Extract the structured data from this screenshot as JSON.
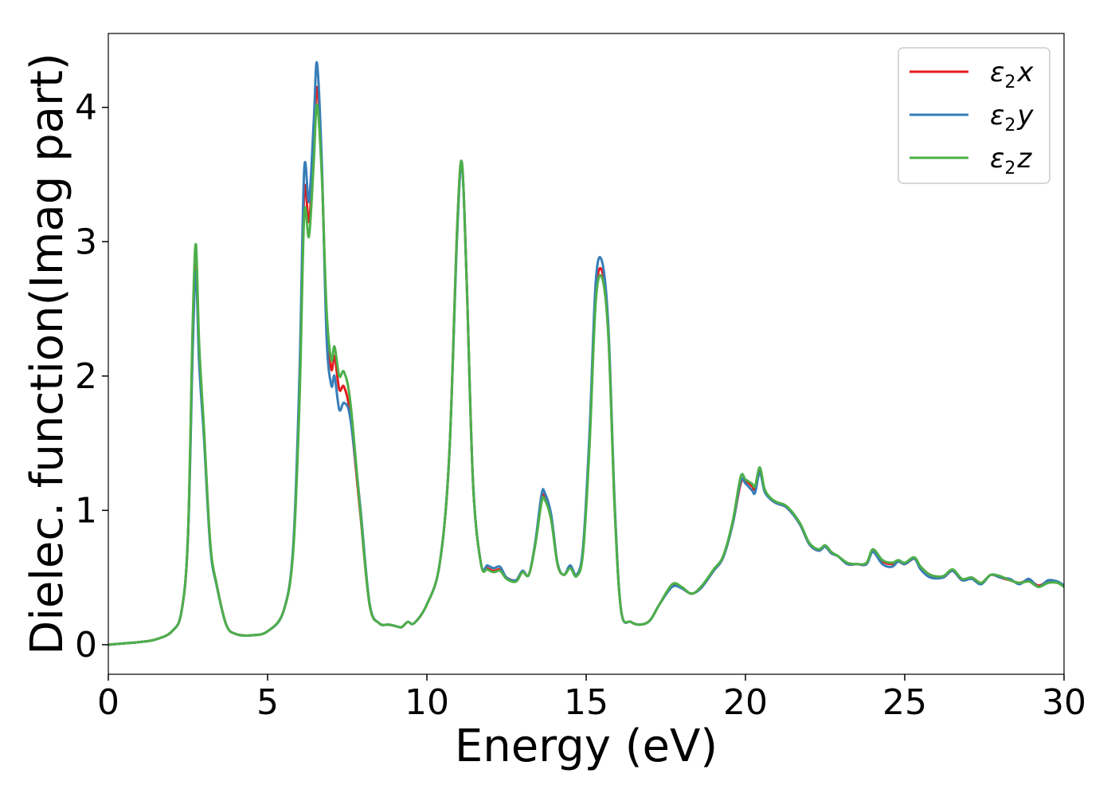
{
  "chart_data": {
    "type": "line",
    "xlabel": "Energy (eV)",
    "ylabel": "Dielec. function(Imag part)",
    "xlim": [
      0,
      30
    ],
    "ylim": [
      -0.22,
      4.55
    ],
    "xticks": [
      0,
      5,
      10,
      15,
      20,
      25,
      30
    ],
    "yticks": [
      0,
      1,
      2,
      3,
      4
    ],
    "grid": false,
    "legend_position": "top-right",
    "series": [
      {
        "name": "ε2x",
        "legend_main": "ε",
        "legend_sub": "2",
        "legend_var": "x",
        "color": "#e41a1c",
        "x": [
          0,
          0.5,
          1.0,
          1.5,
          2.0,
          2.3,
          2.5,
          2.65,
          2.75,
          2.85,
          3.0,
          3.2,
          3.4,
          3.7,
          4.0,
          4.5,
          5.0,
          5.5,
          5.8,
          6.0,
          6.15,
          6.3,
          6.45,
          6.55,
          6.7,
          6.85,
          7.0,
          7.1,
          7.25,
          7.4,
          7.6,
          7.9,
          8.2,
          8.5,
          8.8,
          9.0,
          9.2,
          9.4,
          9.6,
          10.0,
          10.4,
          10.7,
          10.95,
          11.1,
          11.25,
          11.45,
          11.7,
          11.9,
          12.1,
          12.3,
          12.5,
          12.8,
          13.0,
          13.2,
          13.4,
          13.6,
          13.7,
          13.9,
          14.1,
          14.3,
          14.5,
          14.7,
          14.9,
          15.1,
          15.3,
          15.5,
          15.7,
          15.9,
          16.1,
          16.4,
          16.7,
          17.0,
          17.3,
          17.7,
          18.0,
          18.3,
          18.6,
          19.0,
          19.3,
          19.6,
          19.85,
          20.0,
          20.2,
          20.3,
          20.45,
          20.6,
          20.8,
          21.0,
          21.3,
          21.7,
          22.0,
          22.3,
          22.5,
          22.7,
          22.9,
          23.2,
          23.5,
          23.8,
          24.0,
          24.3,
          24.6,
          24.8,
          25.0,
          25.3,
          25.5,
          25.8,
          26.2,
          26.5,
          26.8,
          27.1,
          27.4,
          27.7,
          28.0,
          28.3,
          28.6,
          28.9,
          29.2,
          29.5,
          29.8,
          30.0
        ],
        "y": [
          0.0,
          0.01,
          0.02,
          0.04,
          0.1,
          0.25,
          0.8,
          2.3,
          2.9,
          2.2,
          1.6,
          0.75,
          0.45,
          0.15,
          0.08,
          0.07,
          0.1,
          0.25,
          0.7,
          1.9,
          3.37,
          3.15,
          3.7,
          4.15,
          3.55,
          2.4,
          2.05,
          2.15,
          1.9,
          1.92,
          1.7,
          1.0,
          0.3,
          0.16,
          0.15,
          0.14,
          0.13,
          0.17,
          0.16,
          0.3,
          0.6,
          1.4,
          3.1,
          3.58,
          2.7,
          1.2,
          0.6,
          0.57,
          0.55,
          0.56,
          0.5,
          0.48,
          0.55,
          0.52,
          0.75,
          1.08,
          1.1,
          0.95,
          0.6,
          0.52,
          0.58,
          0.52,
          0.7,
          1.5,
          2.6,
          2.78,
          2.3,
          1.0,
          0.25,
          0.17,
          0.15,
          0.18,
          0.3,
          0.44,
          0.42,
          0.38,
          0.42,
          0.55,
          0.65,
          0.9,
          1.2,
          1.22,
          1.18,
          1.16,
          1.3,
          1.15,
          1.08,
          1.05,
          1.02,
          0.9,
          0.75,
          0.7,
          0.73,
          0.68,
          0.66,
          0.6,
          0.6,
          0.6,
          0.7,
          0.62,
          0.6,
          0.62,
          0.6,
          0.64,
          0.58,
          0.52,
          0.5,
          0.55,
          0.48,
          0.5,
          0.46,
          0.52,
          0.5,
          0.48,
          0.46,
          0.48,
          0.44,
          0.47,
          0.46,
          0.44
        ]
      },
      {
        "name": "ε2y",
        "legend_main": "ε",
        "legend_sub": "2",
        "legend_var": "y",
        "color": "#377eb8",
        "x": [
          0,
          0.5,
          1.0,
          1.5,
          2.0,
          2.3,
          2.5,
          2.65,
          2.75,
          2.85,
          3.0,
          3.2,
          3.4,
          3.7,
          4.0,
          4.5,
          5.0,
          5.5,
          5.8,
          6.0,
          6.15,
          6.3,
          6.45,
          6.55,
          6.7,
          6.85,
          7.0,
          7.1,
          7.25,
          7.4,
          7.6,
          7.9,
          8.2,
          8.5,
          8.8,
          9.0,
          9.2,
          9.4,
          9.6,
          10.0,
          10.4,
          10.7,
          10.95,
          11.1,
          11.25,
          11.45,
          11.7,
          11.9,
          12.1,
          12.3,
          12.5,
          12.8,
          13.0,
          13.2,
          13.4,
          13.6,
          13.7,
          13.9,
          14.1,
          14.3,
          14.5,
          14.7,
          14.9,
          15.1,
          15.3,
          15.5,
          15.7,
          15.9,
          16.1,
          16.4,
          16.7,
          17.0,
          17.3,
          17.7,
          18.0,
          18.3,
          18.6,
          19.0,
          19.3,
          19.6,
          19.85,
          20.0,
          20.2,
          20.3,
          20.45,
          20.6,
          20.8,
          21.0,
          21.3,
          21.7,
          22.0,
          22.3,
          22.5,
          22.7,
          22.9,
          23.2,
          23.5,
          23.8,
          24.0,
          24.3,
          24.6,
          24.8,
          25.0,
          25.3,
          25.5,
          25.8,
          26.2,
          26.5,
          26.8,
          27.1,
          27.4,
          27.7,
          28.0,
          28.3,
          28.6,
          28.9,
          29.2,
          29.5,
          29.8,
          30.0
        ],
        "y": [
          0.0,
          0.01,
          0.02,
          0.04,
          0.1,
          0.25,
          0.8,
          2.2,
          2.78,
          2.1,
          1.55,
          0.73,
          0.44,
          0.15,
          0.08,
          0.07,
          0.1,
          0.25,
          0.72,
          2.0,
          3.54,
          3.3,
          3.9,
          4.33,
          3.6,
          2.3,
          1.93,
          2.0,
          1.75,
          1.8,
          1.68,
          1.05,
          0.31,
          0.16,
          0.15,
          0.14,
          0.13,
          0.17,
          0.16,
          0.3,
          0.6,
          1.4,
          3.05,
          3.57,
          2.7,
          1.2,
          0.6,
          0.59,
          0.57,
          0.58,
          0.5,
          0.48,
          0.55,
          0.52,
          0.76,
          1.12,
          1.13,
          0.97,
          0.61,
          0.52,
          0.59,
          0.52,
          0.72,
          1.55,
          2.7,
          2.85,
          2.35,
          1.02,
          0.25,
          0.17,
          0.15,
          0.18,
          0.3,
          0.43,
          0.42,
          0.38,
          0.42,
          0.55,
          0.65,
          0.9,
          1.22,
          1.2,
          1.15,
          1.13,
          1.28,
          1.14,
          1.08,
          1.05,
          1.02,
          0.9,
          0.75,
          0.7,
          0.73,
          0.68,
          0.66,
          0.6,
          0.6,
          0.6,
          0.69,
          0.6,
          0.58,
          0.62,
          0.6,
          0.64,
          0.56,
          0.5,
          0.5,
          0.55,
          0.48,
          0.49,
          0.45,
          0.52,
          0.5,
          0.49,
          0.45,
          0.49,
          0.43,
          0.48,
          0.47,
          0.44
        ]
      },
      {
        "name": "ε2z",
        "legend_main": "ε",
        "legend_sub": "2",
        "legend_var": "z",
        "color": "#4daf4a",
        "x": [
          0,
          0.5,
          1.0,
          1.5,
          2.0,
          2.3,
          2.5,
          2.65,
          2.75,
          2.85,
          3.0,
          3.2,
          3.4,
          3.7,
          4.0,
          4.5,
          5.0,
          5.5,
          5.8,
          6.0,
          6.15,
          6.3,
          6.45,
          6.55,
          6.7,
          6.85,
          7.0,
          7.1,
          7.25,
          7.4,
          7.6,
          7.9,
          8.2,
          8.5,
          8.8,
          9.0,
          9.2,
          9.4,
          9.6,
          10.0,
          10.4,
          10.7,
          10.95,
          11.1,
          11.25,
          11.45,
          11.7,
          11.9,
          12.1,
          12.3,
          12.5,
          12.8,
          13.0,
          13.2,
          13.4,
          13.6,
          13.7,
          13.9,
          14.1,
          14.3,
          14.5,
          14.7,
          14.9,
          15.1,
          15.3,
          15.5,
          15.7,
          15.9,
          16.1,
          16.4,
          16.7,
          17.0,
          17.3,
          17.7,
          18.0,
          18.3,
          18.6,
          19.0,
          19.3,
          19.6,
          19.85,
          20.0,
          20.2,
          20.3,
          20.45,
          20.6,
          20.8,
          21.0,
          21.3,
          21.7,
          22.0,
          22.3,
          22.5,
          22.7,
          22.9,
          23.2,
          23.5,
          23.8,
          24.0,
          24.3,
          24.6,
          24.8,
          25.0,
          25.3,
          25.5,
          25.8,
          26.2,
          26.5,
          26.8,
          27.1,
          27.4,
          27.7,
          28.0,
          28.3,
          28.6,
          28.9,
          29.2,
          29.5,
          29.8,
          30.0
        ],
        "y": [
          0.0,
          0.01,
          0.02,
          0.04,
          0.1,
          0.25,
          0.82,
          2.4,
          2.98,
          2.25,
          1.62,
          0.76,
          0.45,
          0.15,
          0.08,
          0.07,
          0.1,
          0.25,
          0.68,
          1.8,
          3.2,
          3.04,
          3.6,
          4.02,
          3.5,
          2.5,
          2.12,
          2.22,
          2.0,
          2.03,
          1.8,
          1.02,
          0.3,
          0.16,
          0.15,
          0.14,
          0.13,
          0.17,
          0.16,
          0.3,
          0.6,
          1.4,
          3.1,
          3.59,
          2.7,
          1.2,
          0.6,
          0.56,
          0.54,
          0.55,
          0.49,
          0.47,
          0.54,
          0.52,
          0.74,
          1.06,
          1.08,
          0.93,
          0.6,
          0.52,
          0.57,
          0.51,
          0.68,
          1.45,
          2.55,
          2.73,
          2.28,
          0.98,
          0.25,
          0.17,
          0.15,
          0.18,
          0.3,
          0.45,
          0.43,
          0.38,
          0.43,
          0.56,
          0.66,
          0.92,
          1.25,
          1.23,
          1.2,
          1.18,
          1.32,
          1.16,
          1.09,
          1.06,
          1.03,
          0.91,
          0.76,
          0.71,
          0.74,
          0.69,
          0.66,
          0.61,
          0.6,
          0.61,
          0.71,
          0.63,
          0.61,
          0.63,
          0.61,
          0.65,
          0.58,
          0.52,
          0.51,
          0.56,
          0.49,
          0.5,
          0.46,
          0.52,
          0.51,
          0.48,
          0.46,
          0.47,
          0.43,
          0.46,
          0.46,
          0.43
        ]
      }
    ]
  }
}
